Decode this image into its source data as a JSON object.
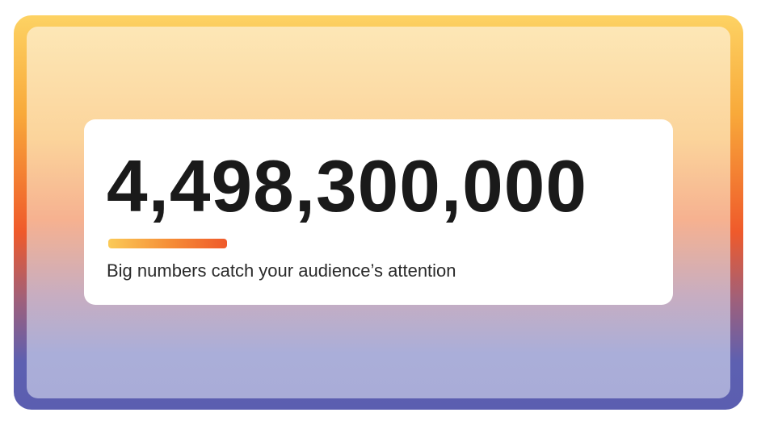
{
  "headline_number": "4,498,300,000",
  "caption": "Big numbers catch your audience’s attention",
  "colors": {
    "frame_top": "#fdd263",
    "frame_middle": "#ef5a2b",
    "frame_bottom": "#5b5eb0",
    "panel_top": "#fde7b6",
    "panel_bottom": "#a9acd7",
    "accent_bar_start": "#fbca57",
    "accent_bar_end": "#ef5a2b",
    "text": "#1a1a1a"
  }
}
